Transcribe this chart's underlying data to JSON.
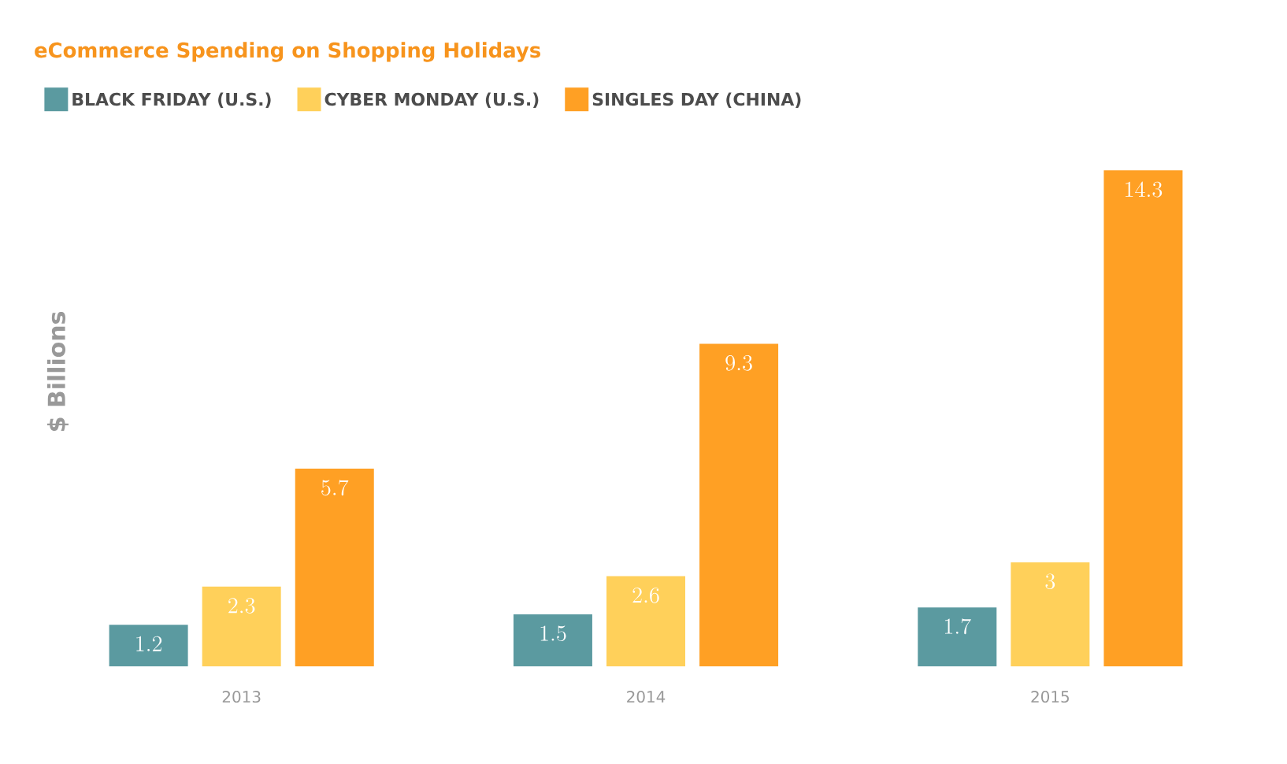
{
  "chart_data": {
    "type": "bar",
    "title": "eCommerce Spending on Shopping Holidays",
    "ylabel": "$ Billions",
    "categories": [
      "2013",
      "2014",
      "2015"
    ],
    "series": [
      {
        "name": "BLACK FRIDAY (U.S.)",
        "color": "#5b9aa0",
        "values": [
          1.2,
          1.5,
          1.7
        ]
      },
      {
        "name": "CYBER MONDAY (U.S.)",
        "color": "#ffd05a",
        "values": [
          2.3,
          2.6,
          3
        ]
      },
      {
        "name": "SINGLES DAY (CHINA)",
        "color": "#ffa024",
        "values": [
          5.7,
          9.3,
          14.3
        ]
      }
    ],
    "data_labels": true,
    "legend": "top left"
  }
}
